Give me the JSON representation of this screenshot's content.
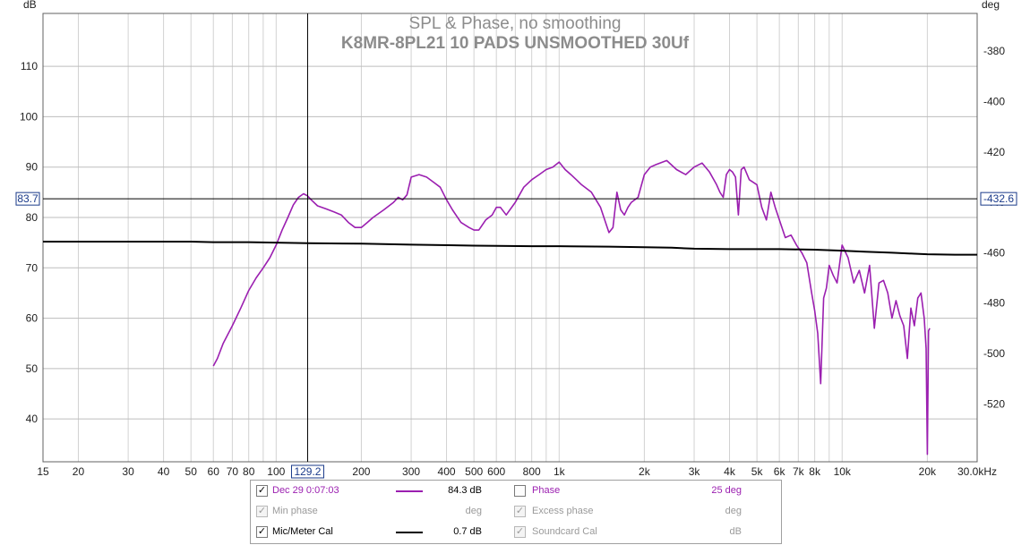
{
  "title_line1": "SPL & Phase, no smoothing",
  "title_line2": "K8MR-8PL21 10 PADS UNSMOOTHED 30Uf",
  "left_unit": "dB",
  "right_unit": "deg",
  "cursor": {
    "freq_label": "129.2",
    "spl_label": "83.7",
    "phase_label": "-432.6",
    "freq": 129.2,
    "spl": 83.7
  },
  "legend": {
    "rows": [
      {
        "checked": true,
        "dim": false,
        "name": "Dec 29 0:07:03",
        "name_color": "#9b1fb0",
        "value": "84.3 dB",
        "swatch": "#9b1fb0",
        "right_checked": false,
        "right_dim": false,
        "right_name": "Phase",
        "right_color": "#9b1fb0",
        "right_value": "25 deg"
      },
      {
        "checked": true,
        "dim": true,
        "name": "Min phase",
        "name_color": "#9a9a9a",
        "value": "deg",
        "swatch": "",
        "right_checked": true,
        "right_dim": true,
        "right_name": "Excess phase",
        "right_color": "#9a9a9a",
        "right_value": "deg"
      },
      {
        "checked": true,
        "dim": false,
        "name": "Mic/Meter Cal",
        "name_color": "#000000",
        "value": "0.7 dB",
        "swatch": "#000000",
        "right_checked": true,
        "right_dim": true,
        "right_name": "Soundcard Cal",
        "right_color": "#9a9a9a",
        "right_value": "dB"
      }
    ]
  },
  "colors": {
    "spl": "#9b1fb0",
    "cal": "#000000",
    "grid": "#d2d2d2",
    "axis": "#606060"
  },
  "chart_data": {
    "type": "line",
    "title": "SPL & Phase, no smoothing",
    "subtitle": "K8MR-8PL21 10 PADS UNSMOOTHED 30Uf",
    "x_scale": "log",
    "xlim": [
      15,
      30000
    ],
    "ylim": [
      31.5,
      120.5
    ],
    "y2lim": [
      -543,
      -365
    ],
    "ylabel": "dB",
    "y2label": "deg",
    "grid": true,
    "x_ticks": [
      15,
      20,
      30,
      40,
      50,
      60,
      70,
      80,
      100,
      200,
      300,
      400,
      500,
      600,
      800,
      1000,
      2000,
      3000,
      4000,
      5000,
      6000,
      7000,
      8000,
      10000,
      20000,
      30000
    ],
    "x_tick_labels": [
      "15",
      "20",
      "30",
      "40",
      "50",
      "60",
      "70",
      "80",
      "100",
      "200",
      "300",
      "400",
      "500",
      "600",
      "800",
      "1k",
      "2k",
      "3k",
      "4k",
      "5k",
      "6k",
      "7k",
      "8k",
      "10k",
      "20k",
      "30.0kHz"
    ],
    "y_ticks": [
      40,
      50,
      60,
      70,
      80,
      90,
      100,
      110
    ],
    "y2_ticks": [
      -520,
      -500,
      -480,
      -460,
      -440,
      -420,
      -400,
      -380
    ],
    "series": [
      {
        "name": "Dec 29 0:07:03",
        "color": "#9b1fb0",
        "x": [
          60,
          62,
          65,
          70,
          75,
          80,
          85,
          90,
          95,
          100,
          105,
          110,
          115,
          120,
          125,
          129,
          133,
          140,
          150,
          160,
          170,
          180,
          190,
          200,
          210,
          220,
          240,
          260,
          270,
          280,
          290,
          300,
          320,
          340,
          360,
          380,
          400,
          420,
          450,
          480,
          500,
          520,
          550,
          580,
          600,
          620,
          650,
          700,
          750,
          800,
          850,
          900,
          950,
          1000,
          1050,
          1100,
          1150,
          1200,
          1300,
          1400,
          1500,
          1550,
          1600,
          1650,
          1700,
          1750,
          1800,
          1900,
          2000,
          2100,
          2200,
          2400,
          2600,
          2800,
          3000,
          3200,
          3400,
          3600,
          3700,
          3800,
          3900,
          4000,
          4100,
          4200,
          4300,
          4400,
          4500,
          4700,
          5000,
          5200,
          5400,
          5600,
          5800,
          6000,
          6300,
          6600,
          6900,
          7200,
          7500,
          7800,
          8000,
          8200,
          8400,
          8600,
          8800,
          9000,
          9300,
          9600,
          10000,
          10500,
          11000,
          11500,
          12000,
          12500,
          13000,
          13500,
          14000,
          14500,
          15000,
          15500,
          16000,
          16500,
          17000,
          17500,
          18000,
          18500,
          19000,
          19500,
          19800,
          20000,
          20200,
          20400
        ],
        "y": [
          50.5,
          52,
          55,
          58.5,
          62,
          65.5,
          68,
          70,
          72,
          74.5,
          77.5,
          80,
          82.5,
          84,
          84.7,
          84.3,
          83.5,
          82.3,
          81.7,
          81.1,
          80.5,
          79,
          78,
          78,
          79,
          80,
          81.5,
          83,
          84,
          83.5,
          84.5,
          88,
          88.5,
          88,
          87,
          86,
          83.5,
          81.5,
          79,
          78,
          77.5,
          77.5,
          79.5,
          80.5,
          82,
          82,
          80.5,
          83,
          86,
          87.5,
          88.5,
          89.5,
          90,
          91,
          89.5,
          88.5,
          87.5,
          86.5,
          85,
          82,
          77,
          78,
          85,
          81.5,
          80.5,
          82,
          83,
          84,
          88.5,
          90,
          90.5,
          91.3,
          89.5,
          88.5,
          90,
          90.8,
          89,
          86.5,
          85,
          84,
          88.5,
          89.5,
          89,
          88,
          80.5,
          89.5,
          90,
          87.5,
          86.5,
          82,
          79.5,
          85,
          82,
          79.5,
          76,
          76.5,
          74.5,
          73,
          71,
          65,
          61.5,
          57,
          47,
          64,
          66,
          70.5,
          68.5,
          67,
          74.5,
          72,
          67,
          69.5,
          65,
          70.5,
          58,
          67,
          67.5,
          65,
          60,
          63.5,
          60.5,
          58.5,
          52,
          62,
          58.5,
          64,
          65,
          60,
          54,
          33,
          57.5,
          58
        ]
      },
      {
        "name": "Mic/Meter Cal",
        "color": "#000000",
        "x": [
          15,
          20,
          30,
          40,
          50,
          60,
          80,
          100,
          129,
          200,
          300,
          500,
          800,
          1000,
          1500,
          2000,
          2500,
          3000,
          4000,
          5000,
          6000,
          8000,
          10000,
          12000,
          15000,
          18000,
          20000,
          25000,
          30000
        ],
        "y": [
          75.2,
          75.2,
          75.2,
          75.2,
          75.2,
          75.1,
          75.1,
          75,
          74.9,
          74.8,
          74.6,
          74.4,
          74.3,
          74.3,
          74.2,
          74.1,
          74,
          73.8,
          73.7,
          73.7,
          73.7,
          73.6,
          73.4,
          73.2,
          73,
          72.8,
          72.7,
          72.6,
          72.6
        ]
      }
    ]
  }
}
